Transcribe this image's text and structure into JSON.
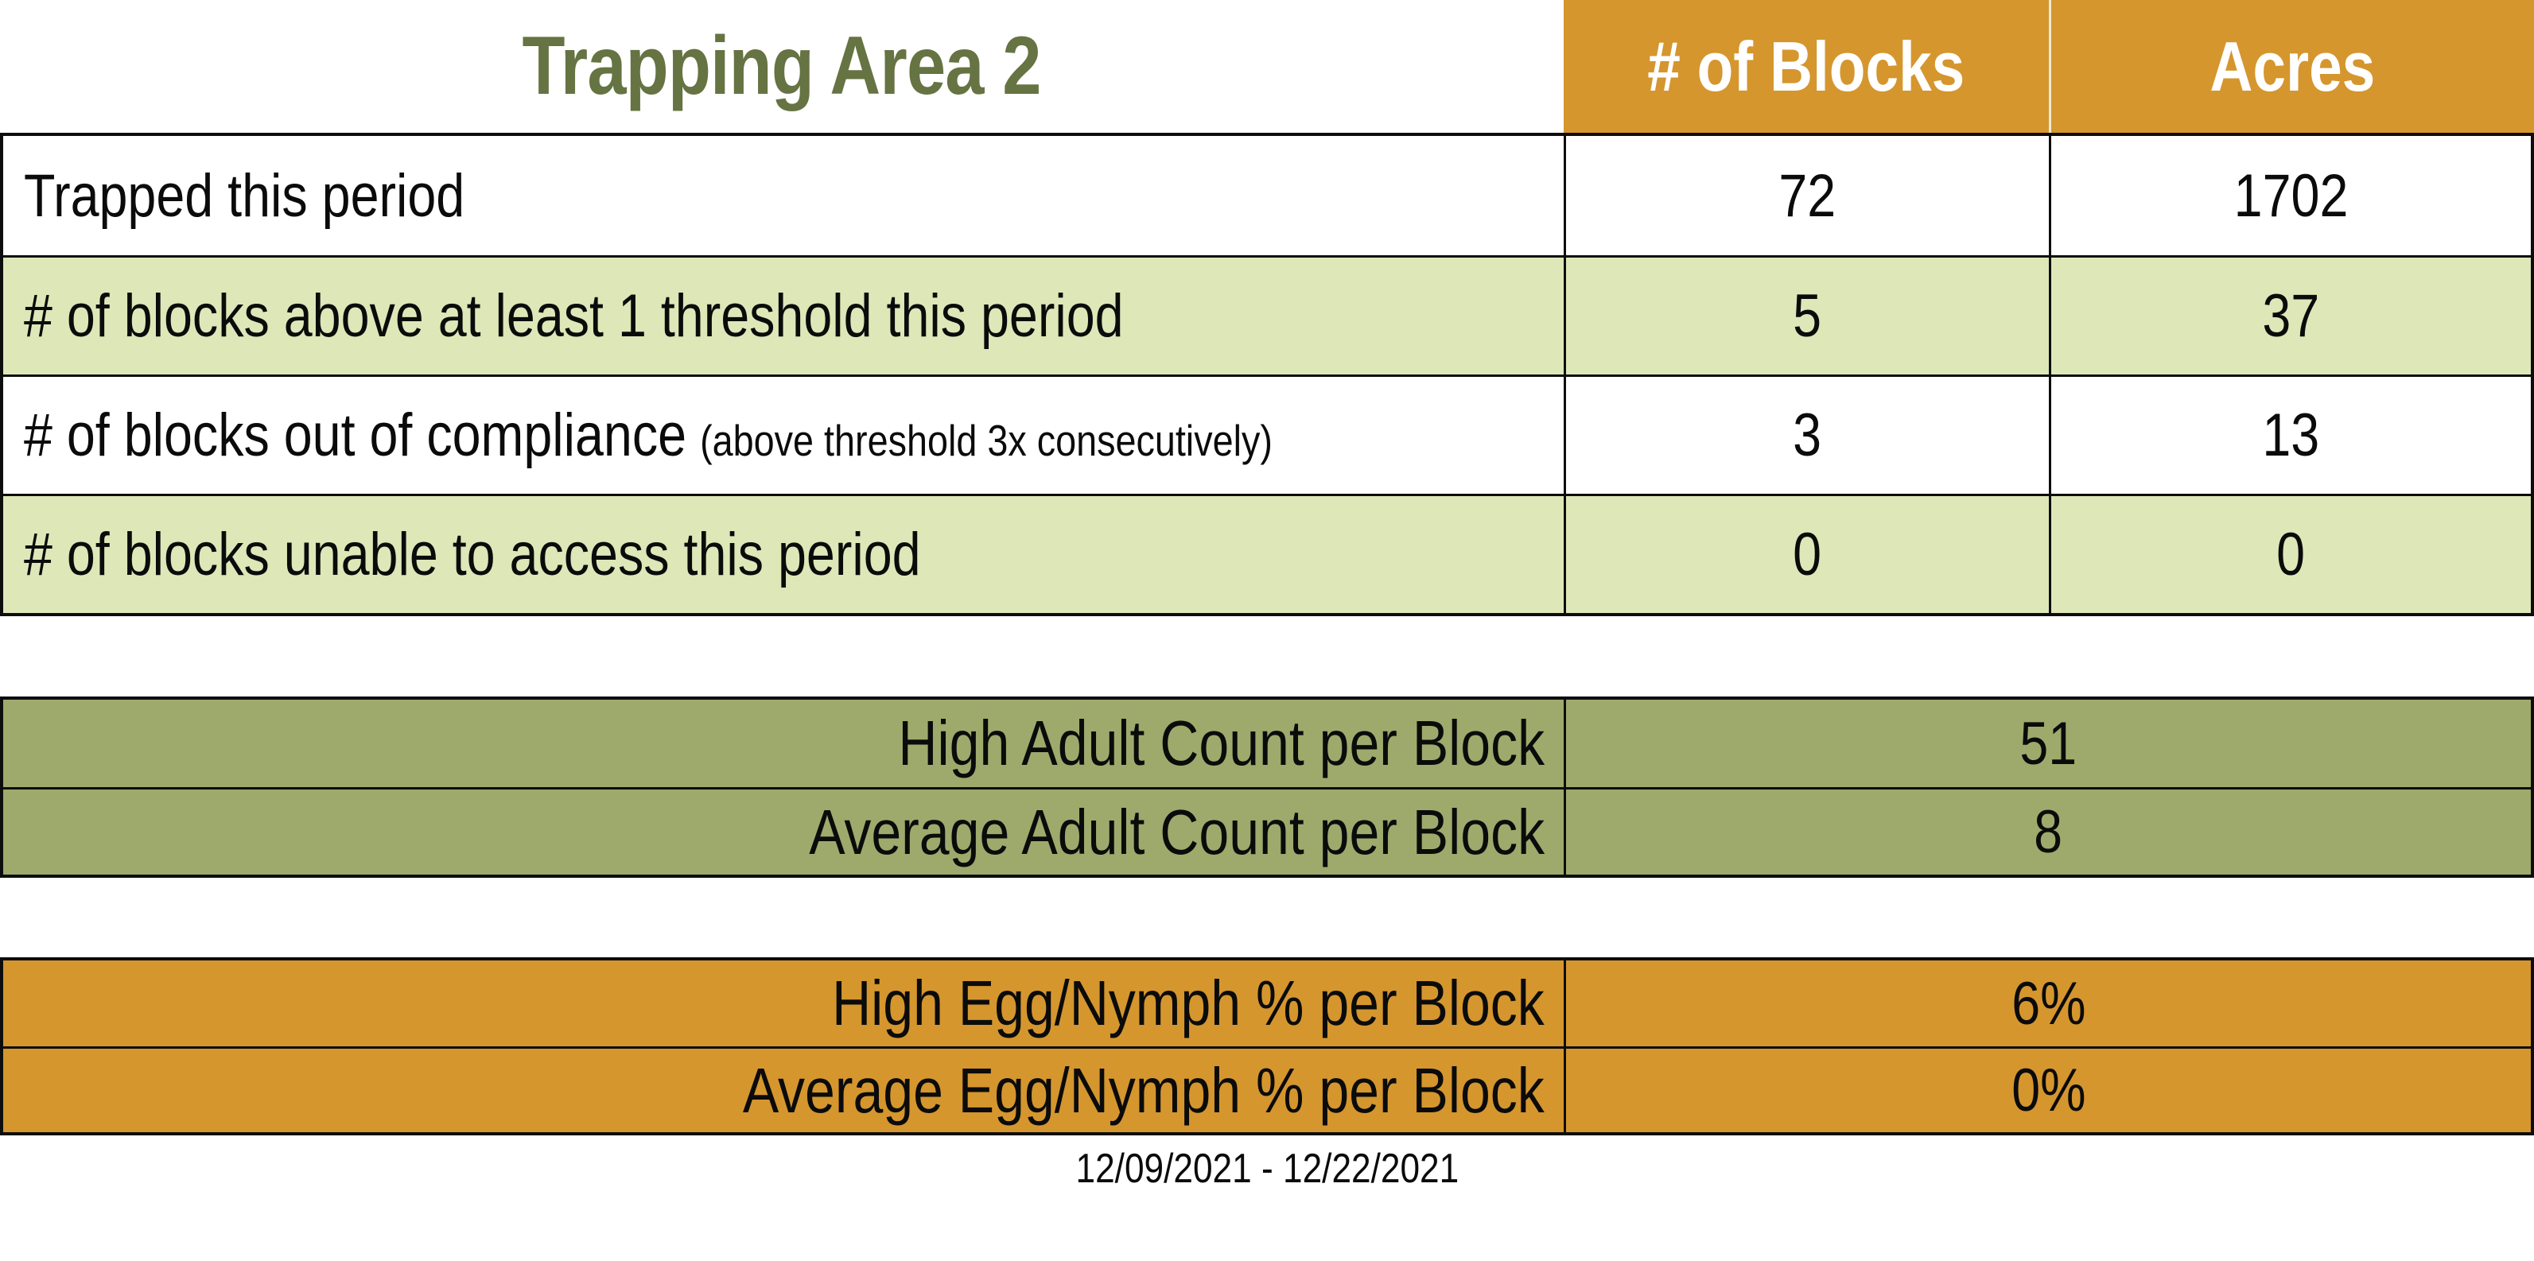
{
  "title": "Trapping Area 2",
  "colors": {
    "header_orange": "#d5962e",
    "band_light_green": "#dde7b8",
    "adult_olive": "#9daa6c",
    "title_green": "#667342",
    "border_black": "#0d0d0d",
    "header_text_white": "#ffffff"
  },
  "header": {
    "columns": {
      "blocks": "# of Blocks",
      "acres": "Acres"
    }
  },
  "main_table": {
    "rows": [
      {
        "label": "Trapped this period",
        "note": "",
        "blocks": "72",
        "acres": "1702"
      },
      {
        "label": "# of blocks above at least 1 threshold this period",
        "note": "",
        "blocks": "5",
        "acres": "37"
      },
      {
        "label": "# of blocks out of compliance",
        "note": "(above threshold 3x consecutively)",
        "blocks": "3",
        "acres": "13"
      },
      {
        "label": "# of blocks unable to access this period",
        "note": "",
        "blocks": "0",
        "acres": "0"
      }
    ]
  },
  "adult_table": {
    "rows": [
      {
        "label": "High Adult Count per Block",
        "value": "51"
      },
      {
        "label": "Average Adult Count per Block",
        "value": "8"
      }
    ]
  },
  "egg_table": {
    "rows": [
      {
        "label": "High Egg/Nymph % per Block",
        "value": "6%"
      },
      {
        "label": "Average Egg/Nymph % per Block",
        "value": "0%"
      }
    ]
  },
  "footer": {
    "date_range": "12/09/2021 - 12/22/2021"
  },
  "chart_data": {
    "type": "table",
    "title": "Trapping Area 2",
    "columns": [
      "",
      "# of Blocks",
      "Acres"
    ],
    "rows": [
      [
        "Trapped this period",
        72,
        1702
      ],
      [
        "# of blocks above at least 1 threshold this period",
        5,
        37
      ],
      [
        "# of blocks out of compliance (above threshold 3x consecutively)",
        3,
        13
      ],
      [
        "# of blocks unable to access this period",
        0,
        0
      ]
    ],
    "summary_tables": [
      {
        "theme_color": "#9daa6c",
        "rows": [
          [
            "High Adult Count per Block",
            51
          ],
          [
            "Average Adult Count per Block",
            8
          ]
        ]
      },
      {
        "theme_color": "#d5962e",
        "rows": [
          [
            "High Egg/Nymph % per Block",
            "6%"
          ],
          [
            "Average Egg/Nymph % per Block",
            "0%"
          ]
        ]
      }
    ],
    "footnote": "12/09/2021 - 12/22/2021",
    "layout": {
      "banded_rows": true,
      "band_color": "#dde7b8",
      "header_color": "#d5962e"
    }
  }
}
